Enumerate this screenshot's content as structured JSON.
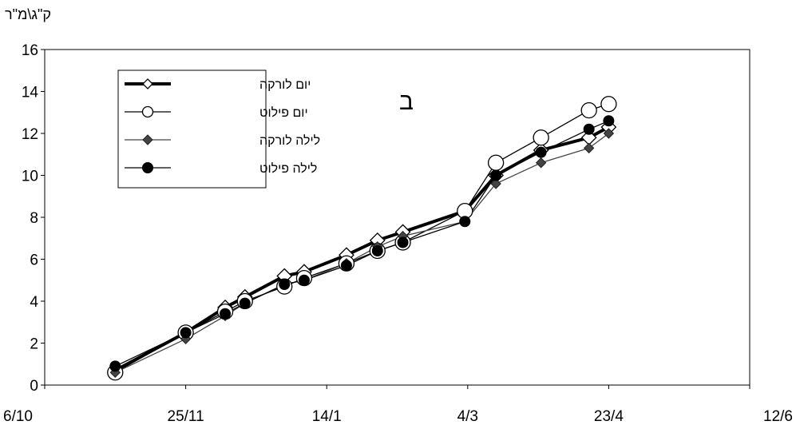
{
  "chart_data": {
    "type": "line",
    "ylabel": "ק\"ג\\מ\"ר",
    "panel_label": "ב",
    "ylim": [
      0,
      16
    ],
    "xlim": [
      "2007-10-06",
      "2008-06-12"
    ],
    "x_ticks": [
      "2007-10-06",
      "2007-11-25",
      "2008-01-14",
      "2008-03-04",
      "2008-04-23",
      "2008-06-12"
    ],
    "x_tick_labels": [
      "6/10",
      "25/11",
      "14/1",
      "4/3",
      "23/4",
      "12/6"
    ],
    "y_ticks": [
      0,
      2,
      4,
      6,
      8,
      10,
      12,
      14,
      16
    ],
    "y_tick_labels": [
      "0",
      "2",
      "4",
      "6",
      "8",
      "10",
      "12",
      "14",
      "16"
    ],
    "grid": false,
    "legend_position": "top-left",
    "series": [
      {
        "name": "יום לורקה",
        "color": "#000000",
        "marker": "diamond-open",
        "line": "thick",
        "points": [
          {
            "x": "2007-10-31",
            "y": 0.7
          },
          {
            "x": "2007-11-25",
            "y": 2.5
          },
          {
            "x": "2007-12-09",
            "y": 3.7
          },
          {
            "x": "2007-12-16",
            "y": 4.2
          },
          {
            "x": "2007-12-30",
            "y": 5.2
          },
          {
            "x": "2008-01-06",
            "y": 5.4
          },
          {
            "x": "2008-01-21",
            "y": 6.2
          },
          {
            "x": "2008-02-01",
            "y": 6.9
          },
          {
            "x": "2008-02-10",
            "y": 7.3
          },
          {
            "x": "2008-03-03",
            "y": 8.3
          },
          {
            "x": "2008-03-14",
            "y": 10.0
          },
          {
            "x": "2008-03-30",
            "y": 11.2
          },
          {
            "x": "2008-04-16",
            "y": 11.8
          },
          {
            "x": "2008-04-23",
            "y": 12.3
          }
        ]
      },
      {
        "name": "יום פילוט",
        "color": "#000000",
        "marker": "circle-open",
        "line": "thin",
        "points": [
          {
            "x": "2007-10-31",
            "y": 0.6
          },
          {
            "x": "2007-11-25",
            "y": 2.5
          },
          {
            "x": "2007-12-09",
            "y": 3.5
          },
          {
            "x": "2007-12-16",
            "y": 4.0
          },
          {
            "x": "2007-12-30",
            "y": 4.7
          },
          {
            "x": "2008-01-06",
            "y": 5.1
          },
          {
            "x": "2008-01-21",
            "y": 5.8
          },
          {
            "x": "2008-02-01",
            "y": 6.4
          },
          {
            "x": "2008-02-10",
            "y": 6.8
          },
          {
            "x": "2008-03-03",
            "y": 8.3
          },
          {
            "x": "2008-03-14",
            "y": 10.6
          },
          {
            "x": "2008-03-30",
            "y": 11.8
          },
          {
            "x": "2008-04-16",
            "y": 13.1
          },
          {
            "x": "2008-04-23",
            "y": 13.4
          }
        ]
      },
      {
        "name": "לילה לורקה",
        "color": "#444444",
        "marker": "diamond-filled",
        "line": "thin",
        "points": [
          {
            "x": "2007-10-31",
            "y": 0.6
          },
          {
            "x": "2007-11-25",
            "y": 2.2
          },
          {
            "x": "2007-12-09",
            "y": 3.3
          },
          {
            "x": "2007-12-16",
            "y": 3.9
          },
          {
            "x": "2007-12-30",
            "y": 4.8
          },
          {
            "x": "2008-01-06",
            "y": 5.0
          },
          {
            "x": "2008-01-21",
            "y": 5.8
          },
          {
            "x": "2008-02-01",
            "y": 6.6
          },
          {
            "x": "2008-02-10",
            "y": 7.1
          },
          {
            "x": "2008-03-03",
            "y": 7.8
          },
          {
            "x": "2008-03-14",
            "y": 9.6
          },
          {
            "x": "2008-03-30",
            "y": 10.6
          },
          {
            "x": "2008-04-16",
            "y": 11.3
          },
          {
            "x": "2008-04-23",
            "y": 12.0
          }
        ]
      },
      {
        "name": "לילה פילוט",
        "color": "#000000",
        "marker": "circle-filled",
        "line": "thin",
        "points": [
          {
            "x": "2007-10-31",
            "y": 0.9
          },
          {
            "x": "2007-11-25",
            "y": 2.5
          },
          {
            "x": "2007-12-09",
            "y": 3.4
          },
          {
            "x": "2007-12-16",
            "y": 3.9
          },
          {
            "x": "2007-12-30",
            "y": 4.8
          },
          {
            "x": "2008-01-06",
            "y": 5.0
          },
          {
            "x": "2008-01-21",
            "y": 5.7
          },
          {
            "x": "2008-02-01",
            "y": 6.4
          },
          {
            "x": "2008-02-10",
            "y": 6.8
          },
          {
            "x": "2008-03-03",
            "y": 7.8
          },
          {
            "x": "2008-03-14",
            "y": 10.0
          },
          {
            "x": "2008-03-30",
            "y": 11.1
          },
          {
            "x": "2008-04-16",
            "y": 12.2
          },
          {
            "x": "2008-04-23",
            "y": 12.6
          }
        ]
      }
    ]
  }
}
